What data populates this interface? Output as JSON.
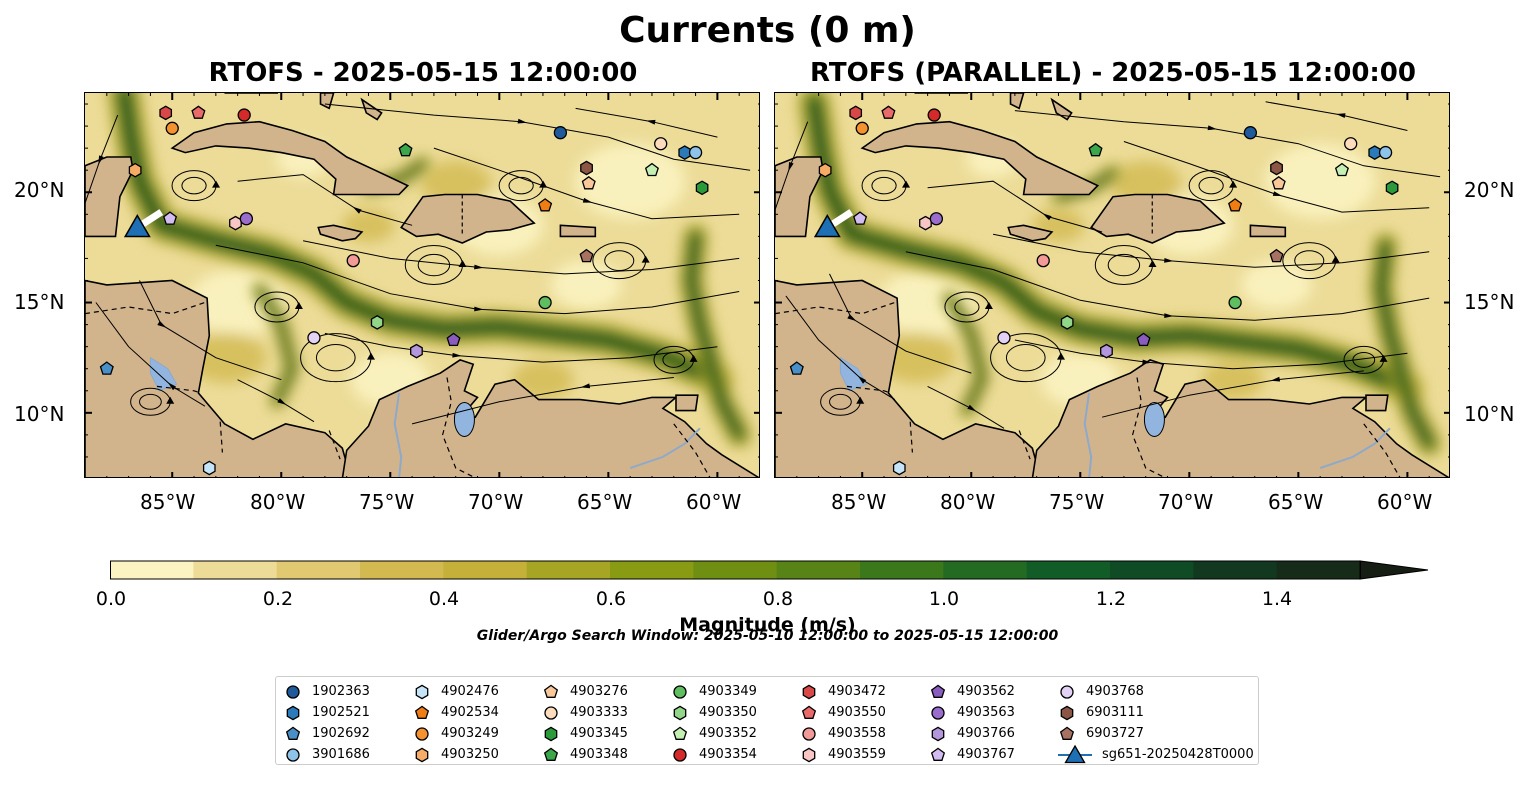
{
  "title": "Currents (0 m)",
  "panels": [
    {
      "title": "RTOFS - 2025-05-15 12:00:00"
    },
    {
      "title": "RTOFS (PARALLEL) - 2025-05-15 12:00:00"
    }
  ],
  "axes": {
    "lon_ticks": [
      "85°W",
      "80°W",
      "75°W",
      "70°W",
      "65°W",
      "60°W"
    ],
    "lat_ticks": [
      "20°N",
      "15°N",
      "10°N"
    ],
    "lon_range": [
      -89,
      -58
    ],
    "lat_range": [
      7,
      24.5
    ]
  },
  "colorbar": {
    "label": "Magnitude (m/s)",
    "ticks": [
      "0.0",
      "0.2",
      "0.4",
      "0.6",
      "0.8",
      "1.0",
      "1.2",
      "1.4"
    ],
    "range": [
      0,
      1.5
    ],
    "extend": "max",
    "colors": [
      "#fbf3c1",
      "#ecdc98",
      "#e0c970",
      "#d2b950",
      "#c5b03a",
      "#a7a524",
      "#889b13",
      "#6e8f12",
      "#588417",
      "#3b771b",
      "#236a23",
      "#125c27",
      "#0f4c26",
      "#12391f",
      "#162b18",
      "#161d12"
    ]
  },
  "search_window": "Glider/Argo Search Window: 2025-05-10 12:00:00 to 2025-05-15 12:00:00",
  "legend": {
    "columns": [
      [
        {
          "label": "1902363",
          "marker": "circle",
          "color": "#1f5a9a"
        },
        {
          "label": "1902521",
          "marker": "hexagon",
          "color": "#2b7bba"
        },
        {
          "label": "1902692",
          "marker": "pentagon",
          "color": "#4a90c8"
        },
        {
          "label": "3901686",
          "marker": "circle",
          "color": "#8ec4ea"
        }
      ],
      [
        {
          "label": "4902476",
          "marker": "hexagon",
          "color": "#c6e4f7"
        },
        {
          "label": "4902534",
          "marker": "pentagon",
          "color": "#f07d14"
        },
        {
          "label": "4903249",
          "marker": "circle",
          "color": "#f3922e"
        },
        {
          "label": "4903250",
          "marker": "hexagon",
          "color": "#f6ac66"
        }
      ],
      [
        {
          "label": "4903276",
          "marker": "pentagon",
          "color": "#f8c89a"
        },
        {
          "label": "4903333",
          "marker": "circle",
          "color": "#fcdcbc"
        },
        {
          "label": "4903345",
          "marker": "hexagon",
          "color": "#2b9a3a"
        },
        {
          "label": "4903348",
          "marker": "pentagon",
          "color": "#3aa84a"
        }
      ],
      [
        {
          "label": "4903349",
          "marker": "circle",
          "color": "#5fbe60"
        },
        {
          "label": "4903350",
          "marker": "hexagon",
          "color": "#92d68a"
        },
        {
          "label": "4903352",
          "marker": "pentagon",
          "color": "#c4f0b4"
        },
        {
          "label": "4903354",
          "marker": "circle",
          "color": "#d42a2a"
        }
      ],
      [
        {
          "label": "4903472",
          "marker": "hexagon",
          "color": "#d94848"
        },
        {
          "label": "4903550",
          "marker": "pentagon",
          "color": "#ea6a6a"
        },
        {
          "label": "4903558",
          "marker": "circle",
          "color": "#f29a98"
        },
        {
          "label": "4903559",
          "marker": "hexagon",
          "color": "#f8c6c4"
        }
      ],
      [
        {
          "label": "4903562",
          "marker": "pentagon",
          "color": "#8a5cbe"
        },
        {
          "label": "4903563",
          "marker": "circle",
          "color": "#9a6ccc"
        },
        {
          "label": "4903766",
          "marker": "hexagon",
          "color": "#b496dc"
        },
        {
          "label": "4903767",
          "marker": "pentagon",
          "color": "#d2bcf0"
        }
      ],
      [
        {
          "label": "4903768",
          "marker": "circle",
          "color": "#e4d2f6"
        },
        {
          "label": "6903111",
          "marker": "hexagon",
          "color": "#8b5646"
        },
        {
          "label": "6903727",
          "marker": "pentagon",
          "color": "#a87262"
        },
        {
          "label": "sg651-20250428T0000",
          "marker": "triangle",
          "color": "#1f6fb4"
        }
      ]
    ]
  },
  "floats": [
    {
      "id": "1902363",
      "lon": -67.2,
      "lat": 22.7
    },
    {
      "id": "1902521",
      "lon": -61.5,
      "lat": 21.8
    },
    {
      "id": "1902692",
      "lon": -88.0,
      "lat": 12.0
    },
    {
      "id": "3901686",
      "lon": -61.0,
      "lat": 21.8
    },
    {
      "id": "4902476",
      "lon": -83.3,
      "lat": 7.5
    },
    {
      "id": "4902534",
      "lon": -67.9,
      "lat": 19.4
    },
    {
      "id": "4903249",
      "lon": -85.0,
      "lat": 22.9
    },
    {
      "id": "4903250",
      "lon": -86.7,
      "lat": 21.0
    },
    {
      "id": "4903276",
      "lon": -65.9,
      "lat": 20.4
    },
    {
      "id": "4903333",
      "lon": -62.6,
      "lat": 22.2
    },
    {
      "id": "4903345",
      "lon": -60.7,
      "lat": 20.2
    },
    {
      "id": "4903348",
      "lon": -74.3,
      "lat": 21.9
    },
    {
      "id": "4903349",
      "lon": -67.9,
      "lat": 15.0
    },
    {
      "id": "4903350",
      "lon": -75.6,
      "lat": 14.1
    },
    {
      "id": "4903352",
      "lon": -63.0,
      "lat": 21.0
    },
    {
      "id": "4903354",
      "lon": -81.7,
      "lat": 23.5
    },
    {
      "id": "4903472",
      "lon": -85.3,
      "lat": 23.6
    },
    {
      "id": "4903550",
      "lon": -83.8,
      "lat": 23.6
    },
    {
      "id": "4903558",
      "lon": -76.7,
      "lat": 16.9
    },
    {
      "id": "4903559",
      "lon": -82.1,
      "lat": 18.6
    },
    {
      "id": "4903562",
      "lon": -72.1,
      "lat": 13.3
    },
    {
      "id": "4903563",
      "lon": -81.6,
      "lat": 18.8
    },
    {
      "id": "4903766",
      "lon": -73.8,
      "lat": 12.8
    },
    {
      "id": "4903767",
      "lon": -85.1,
      "lat": 18.8
    },
    {
      "id": "4903768",
      "lon": -78.5,
      "lat": 13.4
    },
    {
      "id": "6903111",
      "lon": -66.0,
      "lat": 21.1
    },
    {
      "id": "6903727",
      "lon": -66.0,
      "lat": 17.1
    }
  ],
  "glider": {
    "id": "sg651-20250428T0000",
    "lon": -86.6,
    "lat": 18.4,
    "track_end_lon": -85.5,
    "track_end_lat": 19.1
  }
}
